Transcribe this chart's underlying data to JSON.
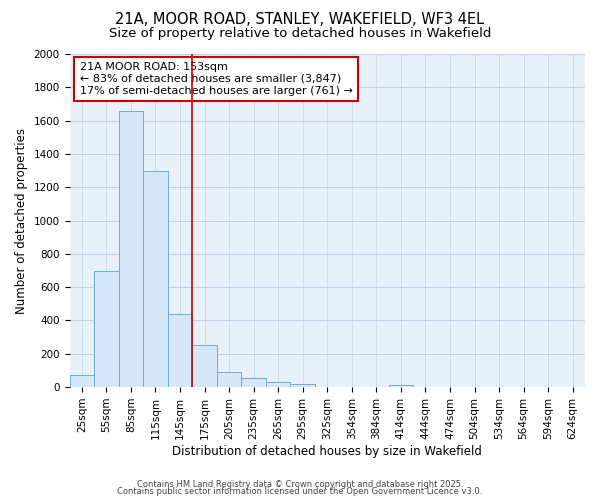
{
  "title_line1": "21A, MOOR ROAD, STANLEY, WAKEFIELD, WF3 4EL",
  "title_line2": "Size of property relative to detached houses in Wakefield",
  "xlabel": "Distribution of detached houses by size in Wakefield",
  "ylabel": "Number of detached properties",
  "bar_labels": [
    "25sqm",
    "55sqm",
    "85sqm",
    "115sqm",
    "145sqm",
    "175sqm",
    "205sqm",
    "235sqm",
    "265sqm",
    "295sqm",
    "325sqm",
    "354sqm",
    "384sqm",
    "414sqm",
    "444sqm",
    "474sqm",
    "504sqm",
    "534sqm",
    "564sqm",
    "594sqm",
    "624sqm"
  ],
  "bar_values": [
    70,
    700,
    1660,
    1300,
    440,
    255,
    90,
    55,
    30,
    20,
    0,
    0,
    0,
    15,
    0,
    0,
    0,
    0,
    0,
    0,
    0
  ],
  "bar_color": "#d6e8f7",
  "bar_edge_color": "#6aaed6",
  "ylim": [
    0,
    2000
  ],
  "yticks": [
    0,
    200,
    400,
    600,
    800,
    1000,
    1200,
    1400,
    1600,
    1800,
    2000
  ],
  "vline_color": "#cc0000",
  "vline_pos": 4.5,
  "annotation_text": "21A MOOR ROAD: 153sqm\n← 83% of detached houses are smaller (3,847)\n17% of semi-detached houses are larger (761) →",
  "annotation_box_color": "#cc0000",
  "footer_line1": "Contains HM Land Registry data © Crown copyright and database right 2025.",
  "footer_line2": "Contains public sector information licensed under the Open Government Licence v3.0.",
  "fig_bg_color": "#ffffff",
  "plot_bg_color": "#e8f0fa",
  "grid_color": "#c0cfe8",
  "title_fontsize": 10.5,
  "subtitle_fontsize": 9.5,
  "axis_label_fontsize": 8.5,
  "tick_fontsize": 7.5,
  "annotation_fontsize": 8,
  "footer_fontsize": 6
}
